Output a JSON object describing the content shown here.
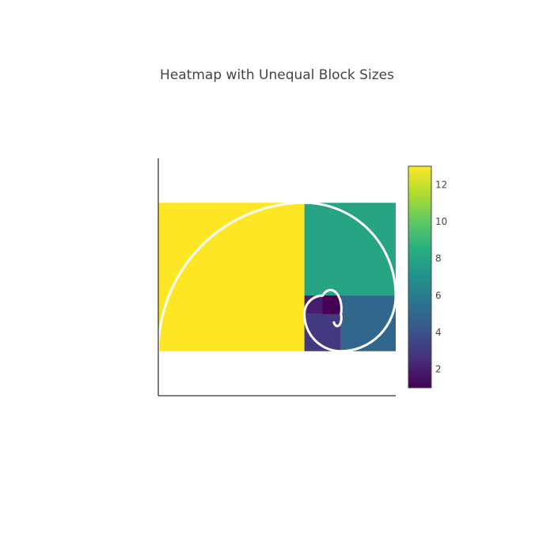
{
  "chart_data": {
    "type": "heatmap",
    "title": "Heatmap with Unequal Block Sizes",
    "xlabel": "",
    "ylabel": "",
    "colorscale": "Viridis",
    "color_range": [
      1,
      13
    ],
    "colorbar": {
      "ticks": [
        2,
        4,
        6,
        8,
        10,
        12
      ]
    },
    "x_edges": [
      0,
      8,
      10,
      12,
      13
    ],
    "y_edges": [
      0,
      1,
      2,
      3,
      5,
      8
    ],
    "cells": [
      {
        "x": [
          0,
          8
        ],
        "y": [
          0,
          8
        ],
        "value": 13
      },
      {
        "x": [
          8,
          13
        ],
        "y": [
          3,
          8
        ],
        "value": 8
      },
      {
        "x": [
          10,
          13
        ],
        "y": [
          0,
          3
        ],
        "value": 5
      },
      {
        "x": [
          8,
          10
        ],
        "y": [
          0,
          2
        ],
        "value": 3
      },
      {
        "x": [
          8,
          10
        ],
        "y": [
          2,
          3
        ],
        "value": 2
      },
      {
        "x": [
          9,
          10
        ],
        "y": [
          2,
          3
        ],
        "value": 1
      }
    ],
    "xlim": [
      0,
      13
    ],
    "ylim": [
      -2.4,
      10.4
    ],
    "spiral": {
      "color": "#ffffff",
      "show": true
    },
    "grid": false,
    "axes_lines": true,
    "show_tick_labels": false
  }
}
